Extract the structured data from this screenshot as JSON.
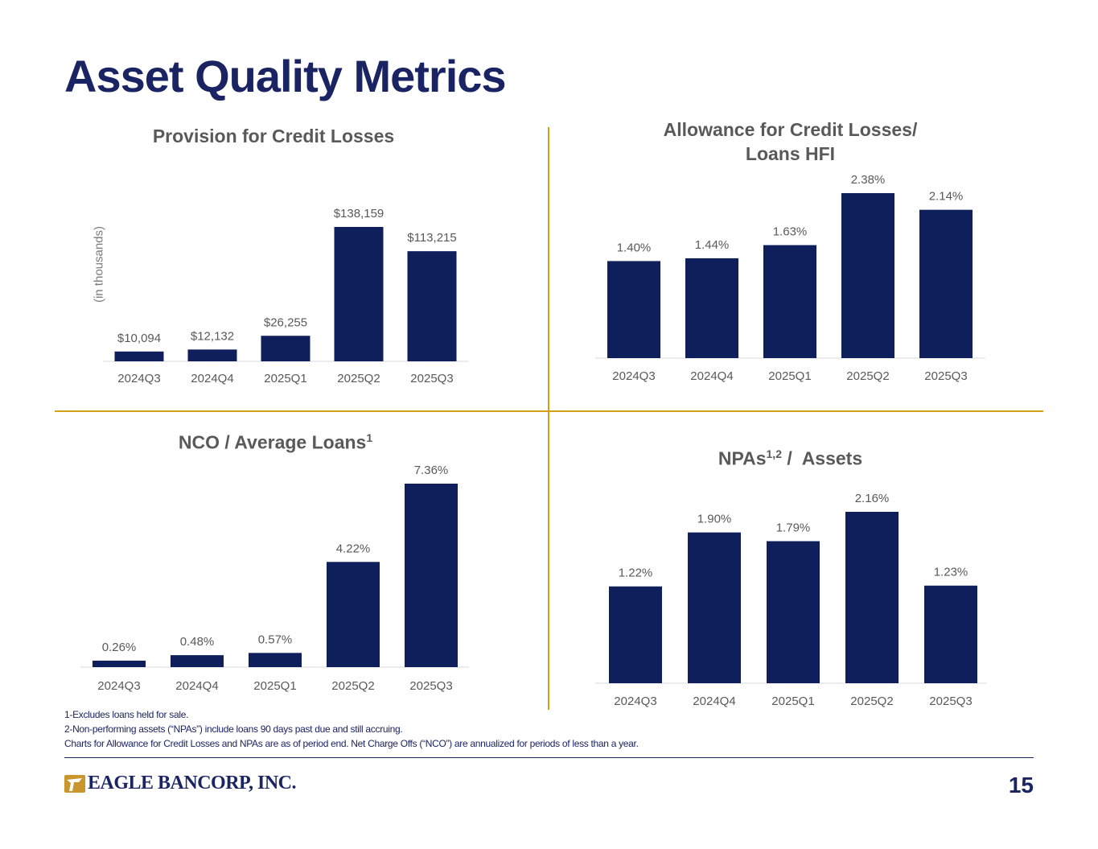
{
  "title": "Asset Quality Metrics",
  "colors": {
    "bar": "#0f1f5c",
    "accent": "#d4a017",
    "navy": "#1b2463"
  },
  "panels": {
    "provision": {
      "title": "Provision for Credit Losses",
      "unit": "(in thousands)"
    },
    "allowance": {
      "title_line1": "Allowance for Credit Losses/",
      "title_line2": "Loans HFI"
    },
    "nco": {
      "title": "NCO / Average Loans",
      "title_sup": "1"
    },
    "npa": {
      "title_pre": "NPAs",
      "title_sup": "1,2",
      "title_post": " /  Assets"
    }
  },
  "chart_data": [
    {
      "type": "bar",
      "title": "Provision for Credit Losses",
      "ylabel": "(in thousands)",
      "categories": [
        "2024Q3",
        "2024Q4",
        "2025Q1",
        "2025Q2",
        "2025Q3"
      ],
      "values": [
        10094,
        12132,
        26255,
        138159,
        113215
      ],
      "labels": [
        "$10,094",
        "$12,132",
        "$26,255",
        "$138,159",
        "$113,215"
      ],
      "ylim": [
        0,
        138159
      ]
    },
    {
      "type": "bar",
      "title": "Allowance for Credit Losses/ Loans HFI",
      "categories": [
        "2024Q3",
        "2024Q4",
        "2025Q1",
        "2025Q2",
        "2025Q3"
      ],
      "values": [
        1.4,
        1.44,
        1.63,
        2.38,
        2.14
      ],
      "labels": [
        "1.40%",
        "1.44%",
        "1.63%",
        "2.38%",
        "2.14%"
      ],
      "ylim": [
        0,
        2.38
      ]
    },
    {
      "type": "bar",
      "title": "NCO / Average Loans",
      "categories": [
        "2024Q3",
        "2024Q4",
        "2025Q1",
        "2025Q2",
        "2025Q3"
      ],
      "values": [
        0.26,
        0.48,
        0.57,
        4.22,
        7.36
      ],
      "labels": [
        "0.26%",
        "0.48%",
        "0.57%",
        "4.22%",
        "7.36%"
      ],
      "ylim": [
        0,
        7.36
      ]
    },
    {
      "type": "bar",
      "title": "NPAs / Assets",
      "categories": [
        "2024Q3",
        "2024Q4",
        "2025Q1",
        "2025Q2",
        "2025Q3"
      ],
      "values": [
        1.22,
        1.9,
        1.79,
        2.16,
        1.23
      ],
      "labels": [
        "1.22%",
        "1.90%",
        "1.79%",
        "2.16%",
        "1.23%"
      ],
      "ylim": [
        0,
        2.16
      ]
    }
  ],
  "footnotes": [
    "1-Excludes loans held for sale.",
    "2-Non-performing assets (“NPAs”) include loans 90 days past due and still accruing.",
    "Charts for Allowance for Credit Losses and NPAs are as of period end. Net Charge Offs (“NCO”) are annualized for periods of less than a year."
  ],
  "footer": {
    "logo_text": "EAGLE BANCORP, INC.",
    "logo_icon": "eagle-icon",
    "page_number": "15"
  }
}
